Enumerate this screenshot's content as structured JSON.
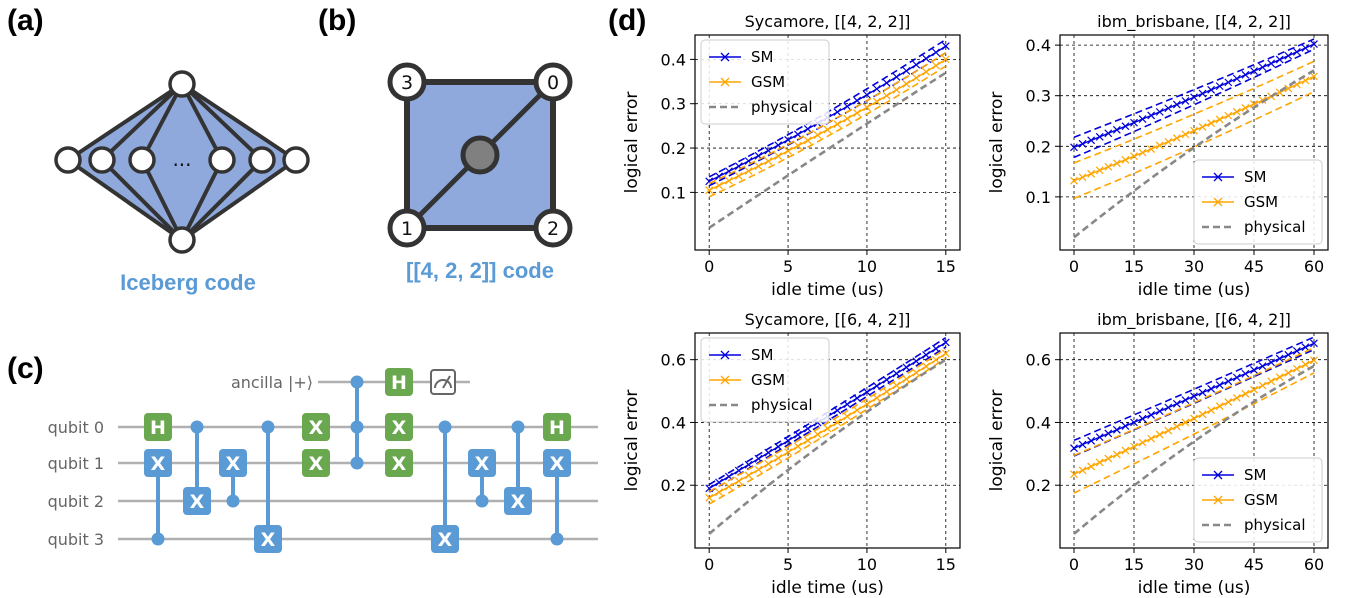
{
  "panels": {
    "a": {
      "label": "(a)",
      "caption": "Iceberg code",
      "ellipsis": "..."
    },
    "b": {
      "label": "(b)",
      "caption": "[[4, 2, 2]] code",
      "nodes": [
        "3",
        "0",
        "1",
        "2"
      ]
    },
    "c": {
      "label": "(c)",
      "ancilla_label": "ancilla |+⟩",
      "qubits": [
        "qubit 0",
        "qubit 1",
        "qubit 2",
        "qubit 3"
      ],
      "gate_h": "H",
      "gate_x": "X"
    },
    "d": {
      "label": "(d)"
    }
  },
  "colors": {
    "sm": "#0000dd",
    "gsm": "#ffa500",
    "physical": "#888888",
    "code_fill": "#8fa9dc",
    "circuit": "#5b9bd5",
    "green": "#6aa84f"
  },
  "chart_data": [
    {
      "type": "line",
      "title": "Sycamore, [[4, 2, 2]]",
      "xlabel": "idle time (us)",
      "ylabel": "logical error",
      "xlim": [
        -0.9,
        15.9
      ],
      "ylim": [
        -0.03,
        0.455
      ],
      "xticks": [
        0,
        5,
        10,
        15
      ],
      "yticks": [
        0.1,
        0.2,
        0.3,
        0.4
      ],
      "legend_loc": "top-left",
      "series": [
        {
          "name": "SM",
          "x": [
            0,
            15
          ],
          "y0": 0.125,
          "y1": 0.43,
          "curve": 0.12,
          "band": [
            0.01,
            0.015
          ],
          "markers": 24
        },
        {
          "name": "GSM",
          "x": [
            0,
            15
          ],
          "y0": 0.105,
          "y1": 0.4,
          "curve": 0.15,
          "band": [
            0.015,
            0.015
          ],
          "markers": 24
        },
        {
          "name": "physical",
          "x": [
            0,
            15
          ],
          "y0": 0.02,
          "y1": 0.37,
          "curve": -0.02
        }
      ]
    },
    {
      "type": "line",
      "title": "ibm_brisbane, [[4, 2, 2]]",
      "xlabel": "idle time (us)",
      "ylabel": "logical error",
      "xlim": [
        -3.5,
        63.5
      ],
      "ylim": [
        -0.005,
        0.42
      ],
      "xticks": [
        0,
        15,
        30,
        45,
        60
      ],
      "yticks": [
        0.1,
        0.2,
        0.3,
        0.4
      ],
      "legend_loc": "bottom-right",
      "series": [
        {
          "name": "SM",
          "x": [
            0,
            60
          ],
          "y0": 0.198,
          "y1": 0.402,
          "curve": 0.06,
          "band": [
            0.02,
            0.01
          ],
          "markers": 28
        },
        {
          "name": "GSM",
          "x": [
            0,
            60
          ],
          "y0": 0.132,
          "y1": 0.338,
          "curve": 0.08,
          "band": [
            0.035,
            0.03
          ],
          "markers": 28
        },
        {
          "name": "physical",
          "x": [
            0,
            60
          ],
          "y0": 0.02,
          "y1": 0.35,
          "curve": -0.15
        }
      ]
    },
    {
      "type": "line",
      "title": "Sycamore, [[6, 4, 2]]",
      "xlabel": "idle time (us)",
      "ylabel": "logical error",
      "xlim": [
        -0.9,
        15.9
      ],
      "ylim": [
        0.0,
        0.685
      ],
      "xticks": [
        0,
        5,
        10,
        15
      ],
      "yticks": [
        0.2,
        0.4,
        0.6
      ],
      "legend_loc": "top-left",
      "series": [
        {
          "name": "SM",
          "x": [
            0,
            15
          ],
          "y0": 0.19,
          "y1": 0.655,
          "curve": 0.03,
          "band": [
            0.012,
            0.015
          ],
          "markers": 24
        },
        {
          "name": "GSM",
          "x": [
            0,
            15
          ],
          "y0": 0.16,
          "y1": 0.62,
          "curve": 0.08,
          "band": [
            0.02,
            0.015
          ],
          "markers": 24
        },
        {
          "name": "physical",
          "x": [
            0,
            15
          ],
          "y0": 0.045,
          "y1": 0.6,
          "curve": -0.15
        }
      ]
    },
    {
      "type": "line",
      "title": "ibm_brisbane, [[6, 4, 2]]",
      "xlabel": "idle time (us)",
      "ylabel": "logical error",
      "xlim": [
        -3.5,
        63.5
      ],
      "ylim": [
        0.0,
        0.685
      ],
      "xticks": [
        0,
        15,
        30,
        45,
        60
      ],
      "yticks": [
        0.2,
        0.4,
        0.6
      ],
      "legend_loc": "bottom-right",
      "series": [
        {
          "name": "SM",
          "x": [
            0,
            60
          ],
          "y0": 0.318,
          "y1": 0.652,
          "curve": 0.02,
          "band": [
            0.025,
            0.02
          ],
          "markers": 28
        },
        {
          "name": "GSM",
          "x": [
            0,
            60
          ],
          "y0": 0.235,
          "y1": 0.598,
          "curve": 0.04,
          "band": [
            0.06,
            0.04
          ],
          "markers": 28
        },
        {
          "name": "physical",
          "x": [
            0,
            60
          ],
          "y0": 0.045,
          "y1": 0.58,
          "curve": -0.2
        }
      ]
    }
  ]
}
